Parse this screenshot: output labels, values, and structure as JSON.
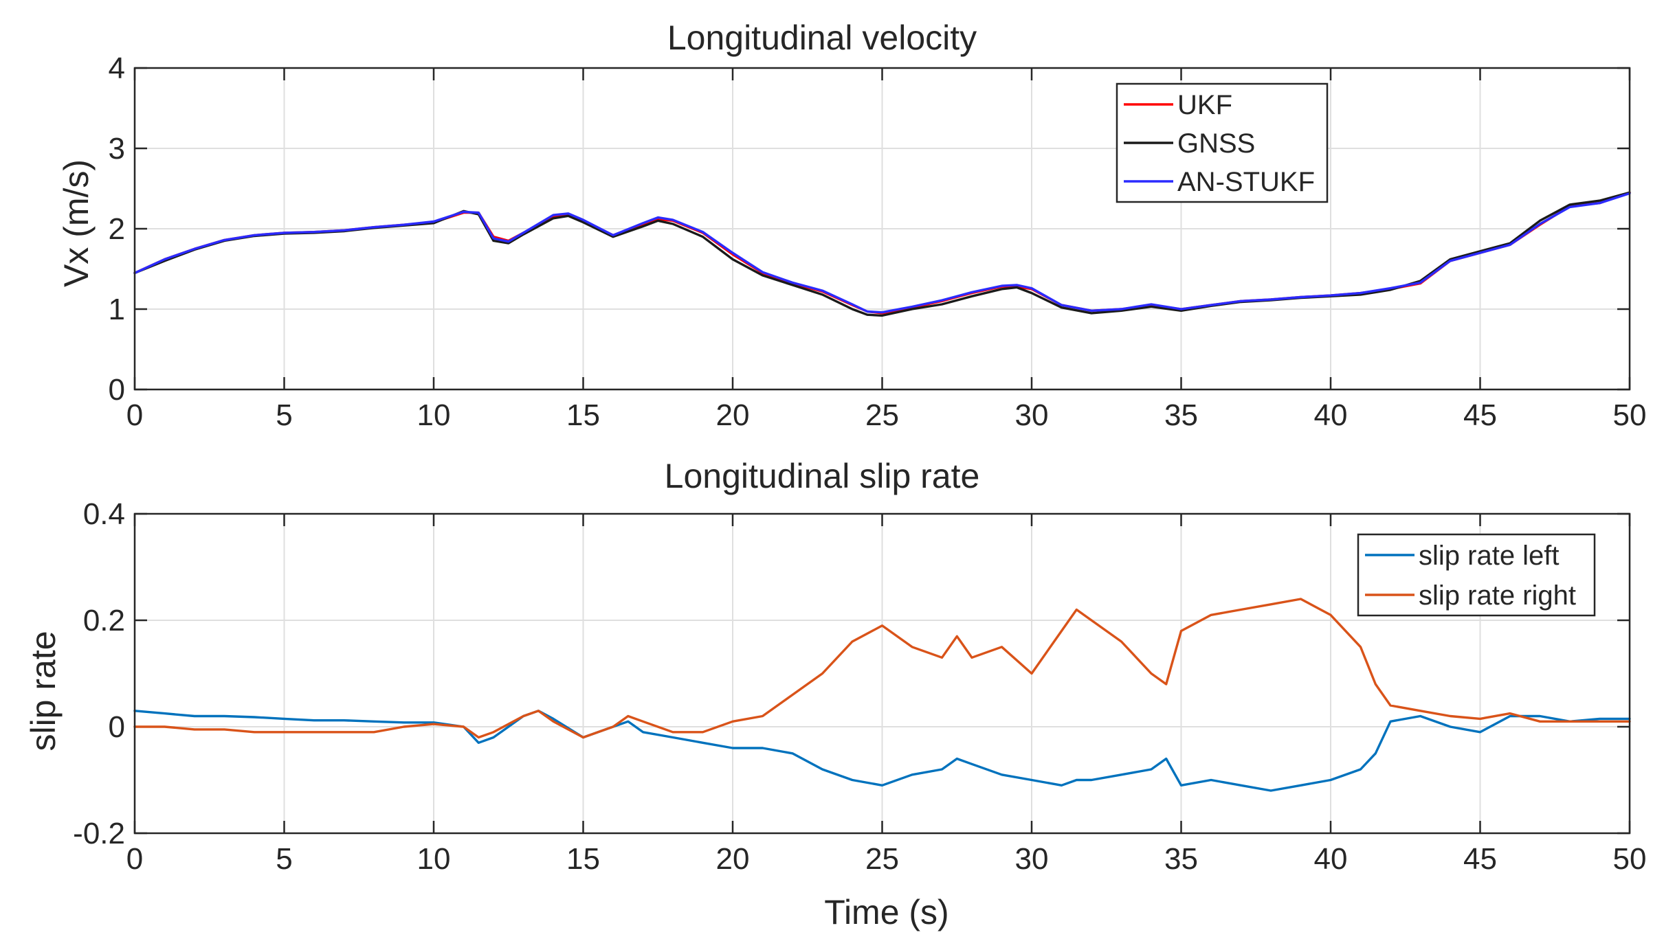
{
  "chart_data": [
    {
      "type": "line",
      "title": "Longitudinal velocity",
      "xlabel": "",
      "ylabel": "Vx (m/s)",
      "xlim": [
        0,
        50
      ],
      "ylim": [
        0,
        4
      ],
      "xticks": [
        0,
        5,
        10,
        15,
        20,
        25,
        30,
        35,
        40,
        45,
        50
      ],
      "yticks": [
        0,
        1,
        2,
        3,
        4
      ],
      "grid": true,
      "legend_position": "top-right",
      "x": [
        0,
        1,
        2,
        3,
        4,
        5,
        6,
        7,
        8,
        9,
        10,
        11,
        11.5,
        12,
        12.5,
        13,
        14,
        14.5,
        15,
        16,
        17,
        17.5,
        18,
        19,
        20,
        21,
        22,
        23,
        24,
        24.5,
        25,
        26,
        27,
        28,
        29,
        29.5,
        30,
        31,
        32,
        33,
        34,
        35,
        36,
        37,
        38,
        39,
        40,
        41,
        42,
        43,
        44,
        45,
        46,
        47,
        48,
        49,
        50
      ],
      "series": [
        {
          "name": "UKF",
          "color": "#ff0000",
          "values": [
            1.45,
            1.62,
            1.75,
            1.86,
            1.92,
            1.95,
            1.96,
            1.98,
            2.02,
            2.05,
            2.08,
            2.2,
            2.2,
            1.9,
            1.85,
            1.95,
            2.15,
            2.18,
            2.1,
            1.92,
            2.05,
            2.12,
            2.1,
            1.95,
            1.68,
            1.45,
            1.32,
            1.22,
            1.05,
            0.97,
            0.95,
            1.02,
            1.1,
            1.2,
            1.28,
            1.28,
            1.25,
            1.05,
            0.98,
            1.0,
            1.05,
            1.0,
            1.05,
            1.1,
            1.12,
            1.15,
            1.17,
            1.2,
            1.25,
            1.32,
            1.6,
            1.7,
            1.8,
            2.05,
            2.28,
            2.32,
            2.45
          ]
        },
        {
          "name": "GNSS",
          "color": "#1a1a1a",
          "values": [
            1.45,
            1.6,
            1.74,
            1.85,
            1.91,
            1.94,
            1.95,
            1.97,
            2.01,
            2.04,
            2.07,
            2.22,
            2.18,
            1.85,
            1.82,
            1.93,
            2.13,
            2.16,
            2.08,
            1.9,
            2.03,
            2.1,
            2.06,
            1.9,
            1.62,
            1.42,
            1.3,
            1.18,
            1.0,
            0.93,
            0.92,
            1.0,
            1.06,
            1.16,
            1.25,
            1.27,
            1.2,
            1.02,
            0.95,
            0.98,
            1.03,
            0.98,
            1.04,
            1.09,
            1.11,
            1.14,
            1.16,
            1.18,
            1.24,
            1.35,
            1.62,
            1.72,
            1.82,
            2.1,
            2.3,
            2.35,
            2.45
          ]
        },
        {
          "name": "AN-STUKF",
          "color": "#2b2bff",
          "values": [
            1.45,
            1.62,
            1.75,
            1.86,
            1.92,
            1.95,
            1.96,
            1.98,
            2.02,
            2.05,
            2.09,
            2.21,
            2.2,
            1.88,
            1.84,
            1.95,
            2.17,
            2.19,
            2.11,
            1.92,
            2.07,
            2.14,
            2.11,
            1.96,
            1.7,
            1.46,
            1.33,
            1.23,
            1.06,
            0.97,
            0.96,
            1.03,
            1.11,
            1.21,
            1.29,
            1.3,
            1.26,
            1.05,
            0.98,
            1.0,
            1.06,
            1.0,
            1.05,
            1.1,
            1.12,
            1.15,
            1.17,
            1.2,
            1.26,
            1.33,
            1.6,
            1.7,
            1.8,
            2.06,
            2.27,
            2.32,
            2.44
          ]
        }
      ]
    },
    {
      "type": "line",
      "title": "Longitudinal slip rate",
      "xlabel": "Time (s)",
      "ylabel": "slip rate",
      "xlim": [
        0,
        50
      ],
      "ylim": [
        -0.2,
        0.4
      ],
      "xticks": [
        0,
        5,
        10,
        15,
        20,
        25,
        30,
        35,
        40,
        45,
        50
      ],
      "yticks": [
        -0.2,
        0,
        0.2,
        0.4
      ],
      "grid": true,
      "legend_position": "top-right",
      "x": [
        0,
        1,
        2,
        3,
        4,
        5,
        6,
        7,
        8,
        9,
        10,
        11,
        11.5,
        12,
        13,
        13.5,
        14,
        15,
        16,
        16.5,
        17,
        18,
        19,
        20,
        21,
        22,
        23,
        24,
        25,
        26,
        27,
        27.5,
        28,
        29,
        30,
        31,
        31.5,
        32,
        33,
        34,
        34.5,
        35,
        36,
        37,
        38,
        39,
        40,
        41,
        41.5,
        42,
        43,
        44,
        45,
        46,
        47,
        48,
        49,
        50
      ],
      "series": [
        {
          "name": "slip rate left",
          "color": "#0072bd",
          "values": [
            0.03,
            0.025,
            0.02,
            0.02,
            0.018,
            0.015,
            0.012,
            0.012,
            0.01,
            0.008,
            0.008,
            0.0,
            -0.03,
            -0.02,
            0.02,
            0.03,
            0.015,
            -0.02,
            0.0,
            0.01,
            -0.01,
            -0.02,
            -0.03,
            -0.04,
            -0.04,
            -0.05,
            -0.08,
            -0.1,
            -0.11,
            -0.09,
            -0.08,
            -0.06,
            -0.07,
            -0.09,
            -0.1,
            -0.11,
            -0.1,
            -0.1,
            -0.09,
            -0.08,
            -0.06,
            -0.11,
            -0.1,
            -0.11,
            -0.12,
            -0.11,
            -0.1,
            -0.08,
            -0.05,
            0.01,
            0.02,
            0.0,
            -0.01,
            0.02,
            0.02,
            0.01,
            0.015,
            0.015
          ]
        },
        {
          "name": "slip rate right",
          "color": "#d95319",
          "values": [
            0.0,
            0.0,
            -0.005,
            -0.005,
            -0.01,
            -0.01,
            -0.01,
            -0.01,
            -0.01,
            0.0,
            0.005,
            0.0,
            -0.02,
            -0.01,
            0.02,
            0.03,
            0.01,
            -0.02,
            0.0,
            0.02,
            0.01,
            -0.01,
            -0.01,
            0.01,
            0.02,
            0.06,
            0.1,
            0.16,
            0.19,
            0.15,
            0.13,
            0.17,
            0.13,
            0.15,
            0.1,
            0.18,
            0.22,
            0.2,
            0.16,
            0.1,
            0.08,
            0.18,
            0.21,
            0.22,
            0.23,
            0.24,
            0.21,
            0.15,
            0.08,
            0.04,
            0.03,
            0.02,
            0.015,
            0.025,
            0.01,
            0.01,
            0.01,
            0.01
          ]
        }
      ]
    }
  ]
}
